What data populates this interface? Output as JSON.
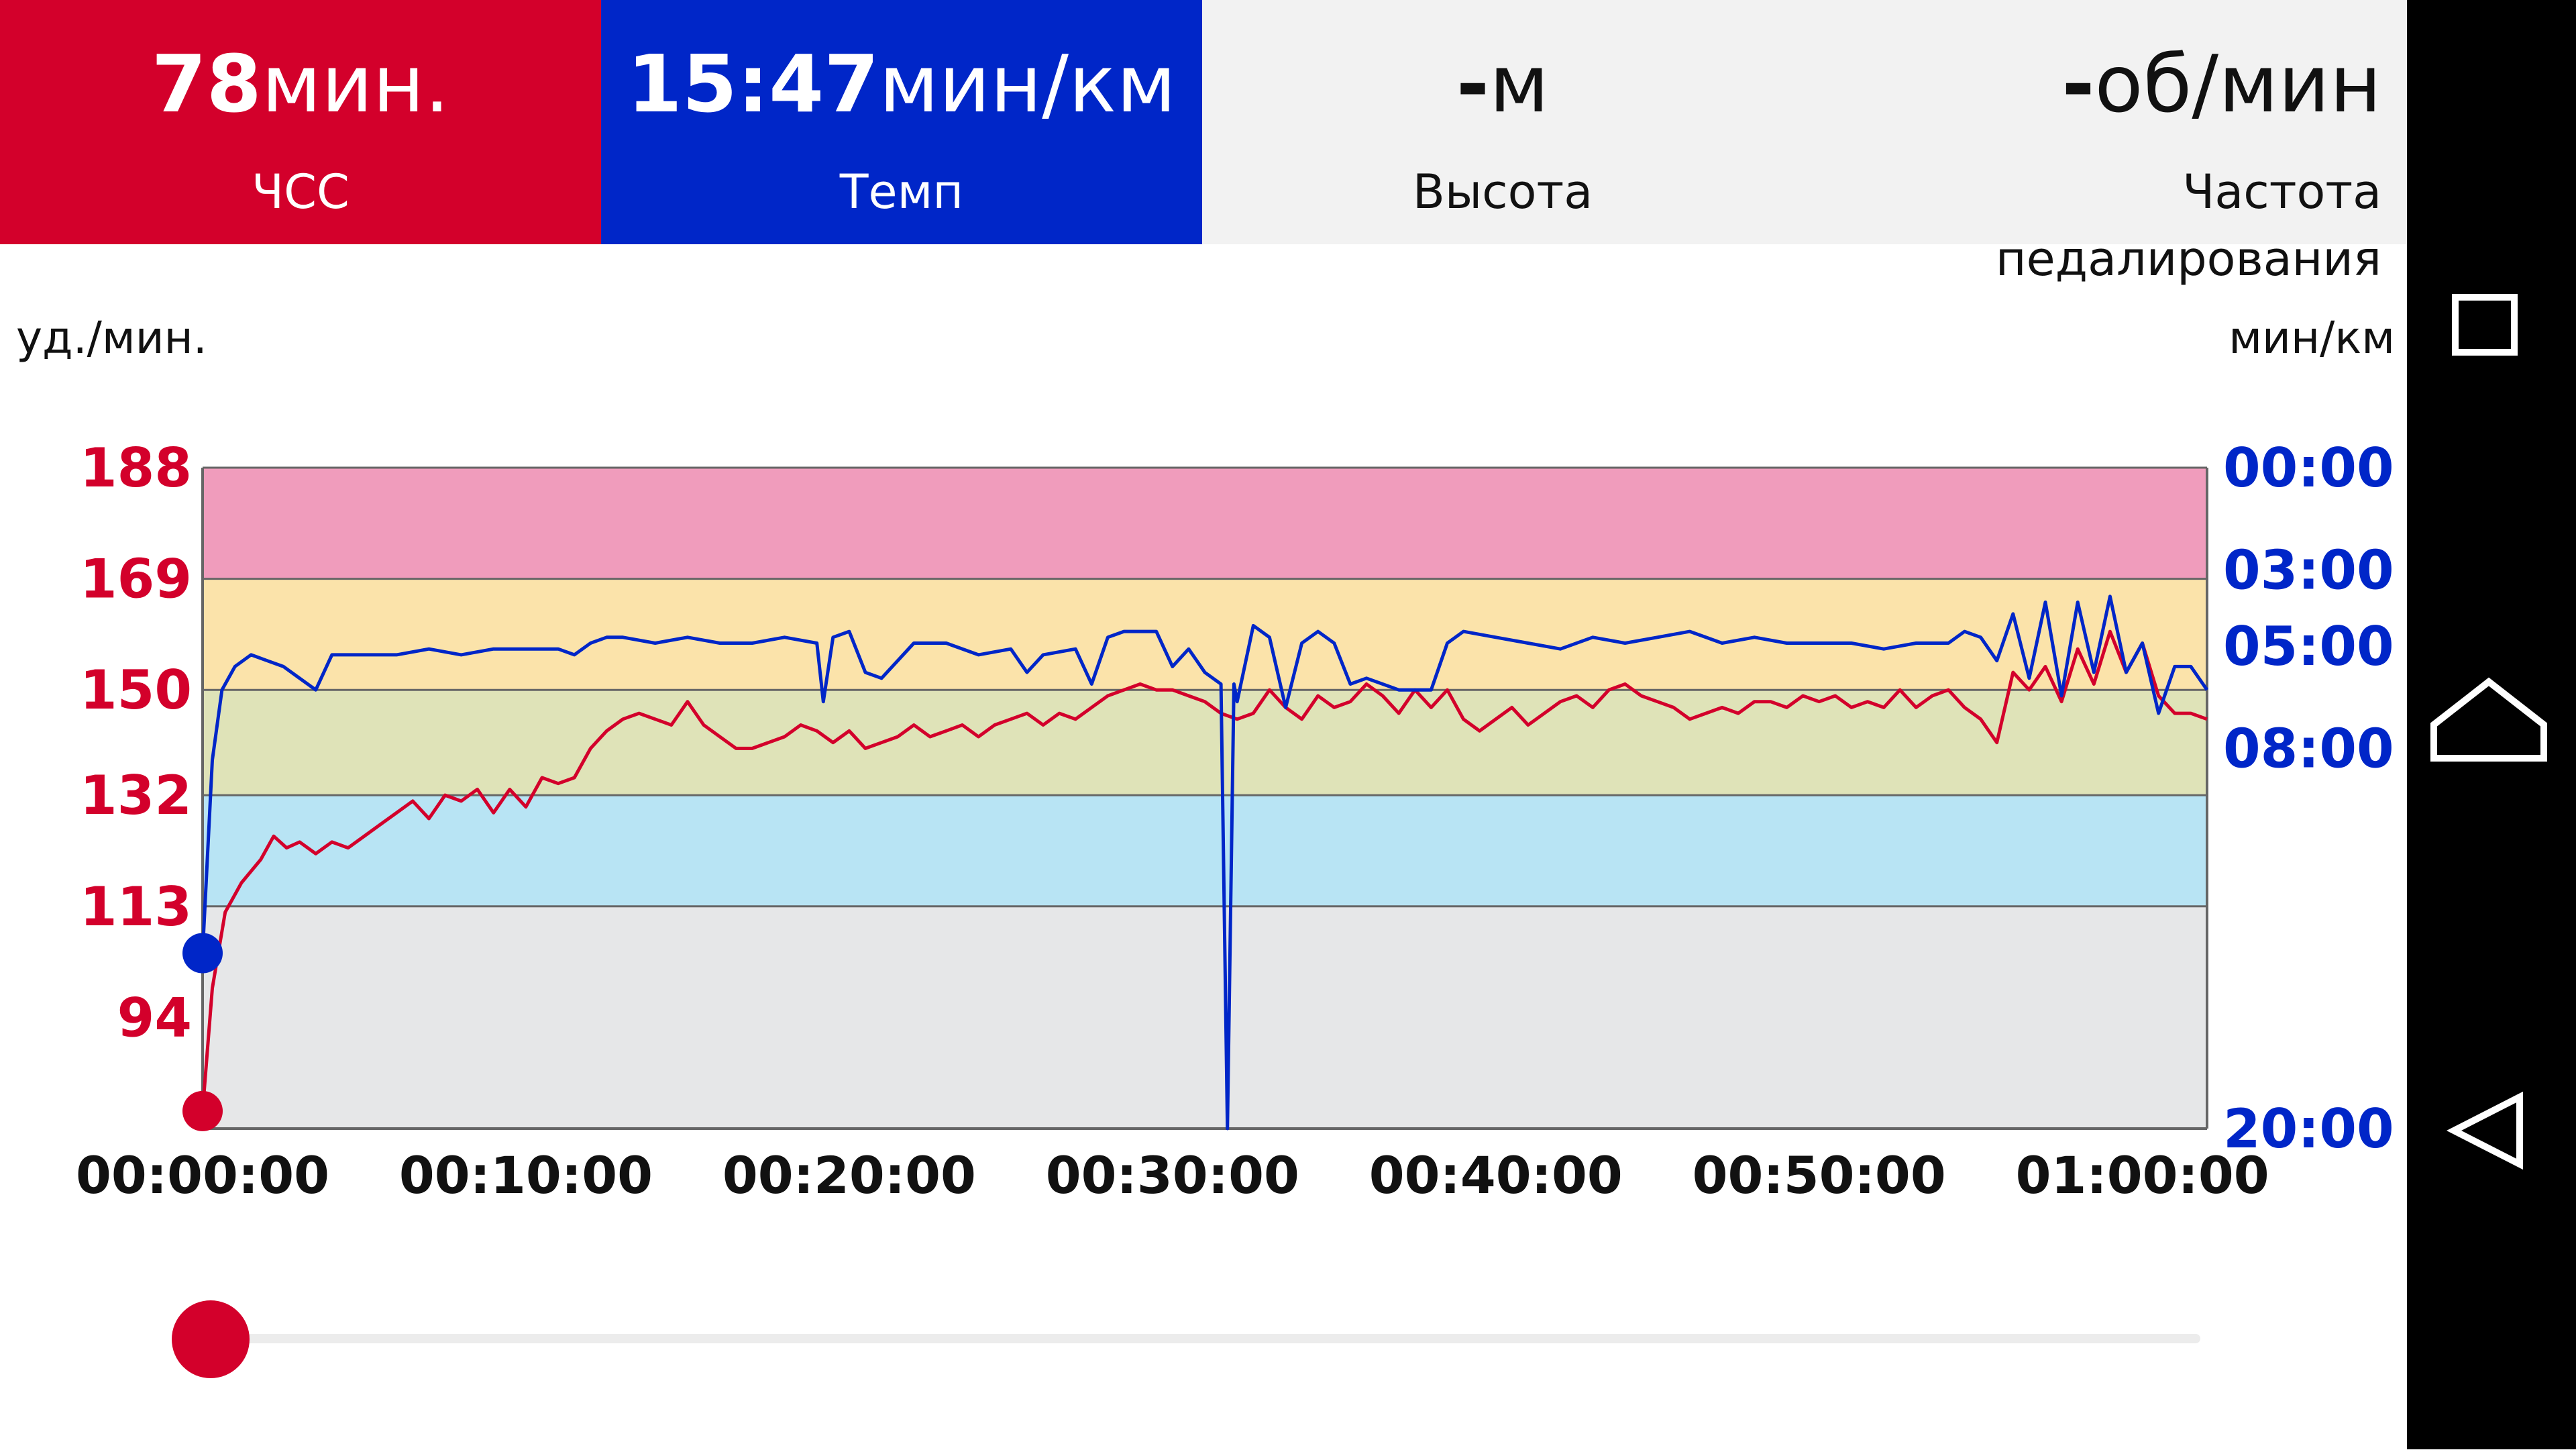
{
  "tiles": {
    "hr": {
      "value": "78",
      "unit": "мин.",
      "label": "ЧСС"
    },
    "pace": {
      "value": "15:47",
      "unit": "мин/км",
      "label": "Темп"
    },
    "alt": {
      "value": "-",
      "unit": "м",
      "label": "Высота"
    },
    "cad": {
      "value": "-",
      "unit": "об/мин",
      "label": "Частота педалирования"
    }
  },
  "chart_data": {
    "type": "line",
    "left_axis_unit": "уд./мин.",
    "right_axis_unit": "мин/км",
    "left_axis": {
      "ticks": [
        "188",
        "169",
        "150",
        "132",
        "113",
        "94"
      ],
      "range": [
        75,
        188
      ]
    },
    "right_axis": {
      "ticks": [
        "00:00",
        "03:00",
        "05:00",
        "08:00",
        "20:00"
      ]
    },
    "x_ticks": [
      "00:00:00",
      "00:10:00",
      "00:20:00",
      "00:30:00",
      "00:40:00",
      "00:50:00",
      "01:00:00"
    ],
    "x_range_min": [
      0,
      62
    ],
    "zones": [
      {
        "from": 75,
        "to": 113,
        "color": "#e6e7e8"
      },
      {
        "from": 113,
        "to": 132,
        "color": "#b8e4f4"
      },
      {
        "from": 132,
        "to": 150,
        "color": "#dfe3b8"
      },
      {
        "from": 150,
        "to": 169,
        "color": "#fbe3aa"
      },
      {
        "from": 169,
        "to": 188,
        "color": "#f09cbc"
      }
    ],
    "series": [
      {
        "color": "#d3002b",
        "points": [
          [
            0,
            78
          ],
          [
            0.3,
            99
          ],
          [
            0.7,
            112
          ],
          [
            1.2,
            117
          ],
          [
            1.8,
            121
          ],
          [
            2.2,
            125
          ],
          [
            2.6,
            123
          ],
          [
            3,
            124
          ],
          [
            3.5,
            122
          ],
          [
            4,
            124
          ],
          [
            4.5,
            123
          ],
          [
            5,
            125
          ],
          [
            5.5,
            127
          ],
          [
            6,
            129
          ],
          [
            6.5,
            131
          ],
          [
            7,
            128
          ],
          [
            7.5,
            132
          ],
          [
            8,
            131
          ],
          [
            8.5,
            133
          ],
          [
            9,
            129
          ],
          [
            9.5,
            133
          ],
          [
            10,
            130
          ],
          [
            10.5,
            135
          ],
          [
            11,
            134
          ],
          [
            11.5,
            135
          ],
          [
            12,
            140
          ],
          [
            12.5,
            143
          ],
          [
            13,
            145
          ],
          [
            13.5,
            146
          ],
          [
            14,
            145
          ],
          [
            14.5,
            144
          ],
          [
            15,
            148
          ],
          [
            15.5,
            144
          ],
          [
            16,
            142
          ],
          [
            16.5,
            140
          ],
          [
            17,
            140
          ],
          [
            17.5,
            141
          ],
          [
            18,
            142
          ],
          [
            18.5,
            144
          ],
          [
            19,
            143
          ],
          [
            19.5,
            141
          ],
          [
            20,
            143
          ],
          [
            20.5,
            140
          ],
          [
            21,
            141
          ],
          [
            21.5,
            142
          ],
          [
            22,
            144
          ],
          [
            22.5,
            142
          ],
          [
            23,
            143
          ],
          [
            23.5,
            144
          ],
          [
            24,
            142
          ],
          [
            24.5,
            144
          ],
          [
            25,
            145
          ],
          [
            25.5,
            146
          ],
          [
            26,
            144
          ],
          [
            26.5,
            146
          ],
          [
            27,
            145
          ],
          [
            27.5,
            147
          ],
          [
            28,
            149
          ],
          [
            28.5,
            150
          ],
          [
            29,
            151
          ],
          [
            29.5,
            150
          ],
          [
            30,
            150
          ],
          [
            30.5,
            149
          ],
          [
            31,
            148
          ],
          [
            31.5,
            146
          ],
          [
            32,
            145
          ],
          [
            32.5,
            146
          ],
          [
            33,
            150
          ],
          [
            33.5,
            147
          ],
          [
            34,
            145
          ],
          [
            34.5,
            149
          ],
          [
            35,
            147
          ],
          [
            35.5,
            148
          ],
          [
            36,
            151
          ],
          [
            36.5,
            149
          ],
          [
            37,
            146
          ],
          [
            37.5,
            150
          ],
          [
            38,
            147
          ],
          [
            38.5,
            150
          ],
          [
            39,
            145
          ],
          [
            39.5,
            143
          ],
          [
            40,
            145
          ],
          [
            40.5,
            147
          ],
          [
            41,
            144
          ],
          [
            41.5,
            146
          ],
          [
            42,
            148
          ],
          [
            42.5,
            149
          ],
          [
            43,
            147
          ],
          [
            43.5,
            150
          ],
          [
            44,
            151
          ],
          [
            44.5,
            149
          ],
          [
            45,
            148
          ],
          [
            45.5,
            147
          ],
          [
            46,
            145
          ],
          [
            46.5,
            146
          ],
          [
            47,
            147
          ],
          [
            47.5,
            146
          ],
          [
            48,
            148
          ],
          [
            48.5,
            148
          ],
          [
            49,
            147
          ],
          [
            49.5,
            149
          ],
          [
            50,
            148
          ],
          [
            50.5,
            149
          ],
          [
            51,
            147
          ],
          [
            51.5,
            148
          ],
          [
            52,
            147
          ],
          [
            52.5,
            150
          ],
          [
            53,
            147
          ],
          [
            53.5,
            149
          ],
          [
            54,
            150
          ],
          [
            54.5,
            147
          ],
          [
            55,
            145
          ],
          [
            55.5,
            141
          ],
          [
            56,
            153
          ],
          [
            56.5,
            150
          ],
          [
            57,
            154
          ],
          [
            57.5,
            148
          ],
          [
            58,
            157
          ],
          [
            58.5,
            151
          ],
          [
            59,
            160
          ],
          [
            59.5,
            153
          ],
          [
            60,
            158
          ],
          [
            60.5,
            149
          ],
          [
            61,
            146
          ],
          [
            61.5,
            146
          ],
          [
            62,
            145
          ]
        ]
      },
      {
        "color": "#0026c8",
        "points": [
          [
            0,
            105
          ],
          [
            0.3,
            138
          ],
          [
            0.6,
            150
          ],
          [
            1,
            154
          ],
          [
            1.5,
            156
          ],
          [
            2,
            155
          ],
          [
            2.5,
            154
          ],
          [
            3,
            152
          ],
          [
            3.5,
            150
          ],
          [
            4,
            156
          ],
          [
            5,
            156
          ],
          [
            6,
            156
          ],
          [
            7,
            157
          ],
          [
            8,
            156
          ],
          [
            9,
            157
          ],
          [
            10,
            157
          ],
          [
            11,
            157
          ],
          [
            11.5,
            156
          ],
          [
            12,
            158
          ],
          [
            12.5,
            159
          ],
          [
            13,
            159
          ],
          [
            14,
            158
          ],
          [
            15,
            159
          ],
          [
            16,
            158
          ],
          [
            17,
            158
          ],
          [
            18,
            159
          ],
          [
            19,
            158
          ],
          [
            19.2,
            148
          ],
          [
            19.5,
            159
          ],
          [
            20,
            160
          ],
          [
            20.5,
            153
          ],
          [
            21,
            152
          ],
          [
            22,
            158
          ],
          [
            23,
            158
          ],
          [
            24,
            156
          ],
          [
            25,
            157
          ],
          [
            25.5,
            153
          ],
          [
            26,
            156
          ],
          [
            27,
            157
          ],
          [
            27.5,
            151
          ],
          [
            28,
            159
          ],
          [
            28.5,
            160
          ],
          [
            29,
            160
          ],
          [
            29.5,
            160
          ],
          [
            30,
            154
          ],
          [
            30.5,
            157
          ],
          [
            31,
            153
          ],
          [
            31.5,
            151
          ],
          [
            31.7,
            75
          ],
          [
            31.9,
            151
          ],
          [
            32,
            148
          ],
          [
            32.5,
            161
          ],
          [
            33,
            159
          ],
          [
            33.5,
            147
          ],
          [
            34,
            158
          ],
          [
            34.5,
            160
          ],
          [
            35,
            158
          ],
          [
            35.5,
            151
          ],
          [
            36,
            152
          ],
          [
            37,
            150
          ],
          [
            37.5,
            150
          ],
          [
            38,
            150
          ],
          [
            38.5,
            158
          ],
          [
            39,
            160
          ],
          [
            40,
            159
          ],
          [
            41,
            158
          ],
          [
            42,
            157
          ],
          [
            43,
            159
          ],
          [
            44,
            158
          ],
          [
            45,
            159
          ],
          [
            46,
            160
          ],
          [
            47,
            158
          ],
          [
            48,
            159
          ],
          [
            49,
            158
          ],
          [
            50,
            158
          ],
          [
            51,
            158
          ],
          [
            52,
            157
          ],
          [
            53,
            158
          ],
          [
            54,
            158
          ],
          [
            54.5,
            160
          ],
          [
            55,
            159
          ],
          [
            55.5,
            155
          ],
          [
            56,
            163
          ],
          [
            56.5,
            152
          ],
          [
            57,
            165
          ],
          [
            57.5,
            149
          ],
          [
            58,
            165
          ],
          [
            58.5,
            153
          ],
          [
            59,
            166
          ],
          [
            59.5,
            153
          ],
          [
            60,
            158
          ],
          [
            60.5,
            146
          ],
          [
            61,
            154
          ],
          [
            61.5,
            154
          ],
          [
            62,
            150
          ]
        ]
      }
    ]
  },
  "nav": {
    "icons": [
      "square-icon",
      "home-icon",
      "back-icon"
    ]
  }
}
